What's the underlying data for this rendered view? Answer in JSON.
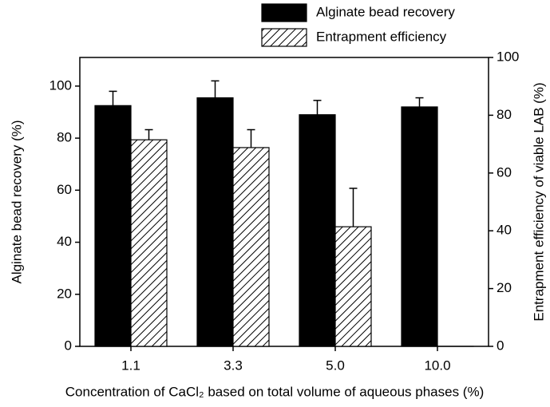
{
  "chart_data": {
    "type": "bar",
    "x_label": "Concentration of CaCl₂ based on total volume of aqueous phases (%)",
    "y_label": "Alginate bead recovery (%)",
    "y2_label": "Entrapment efficiency of viable LAB (%)",
    "categories": [
      "1.1",
      "3.3",
      "5.0",
      "10.0"
    ],
    "series": [
      {
        "name": "Alginate bead recovery",
        "color": "#000000",
        "values": [
          92.5,
          95.5,
          89,
          92
        ],
        "errors": [
          5.5,
          6.5,
          5.5,
          3.5
        ]
      },
      {
        "name": "Entrapment efficiency",
        "color": "#000000",
        "hatch": true,
        "axis": "y2",
        "values": [
          71.5,
          68.8,
          41.4,
          0
        ],
        "errors": [
          3.5,
          6.2,
          13.3,
          0
        ]
      }
    ],
    "ylim": [
      0,
      111
    ],
    "yticks": [
      0,
      20,
      40,
      60,
      80,
      100
    ],
    "y2lim": [
      0,
      100
    ],
    "y2ticks": [
      0,
      20,
      40,
      60,
      80,
      100
    ]
  }
}
